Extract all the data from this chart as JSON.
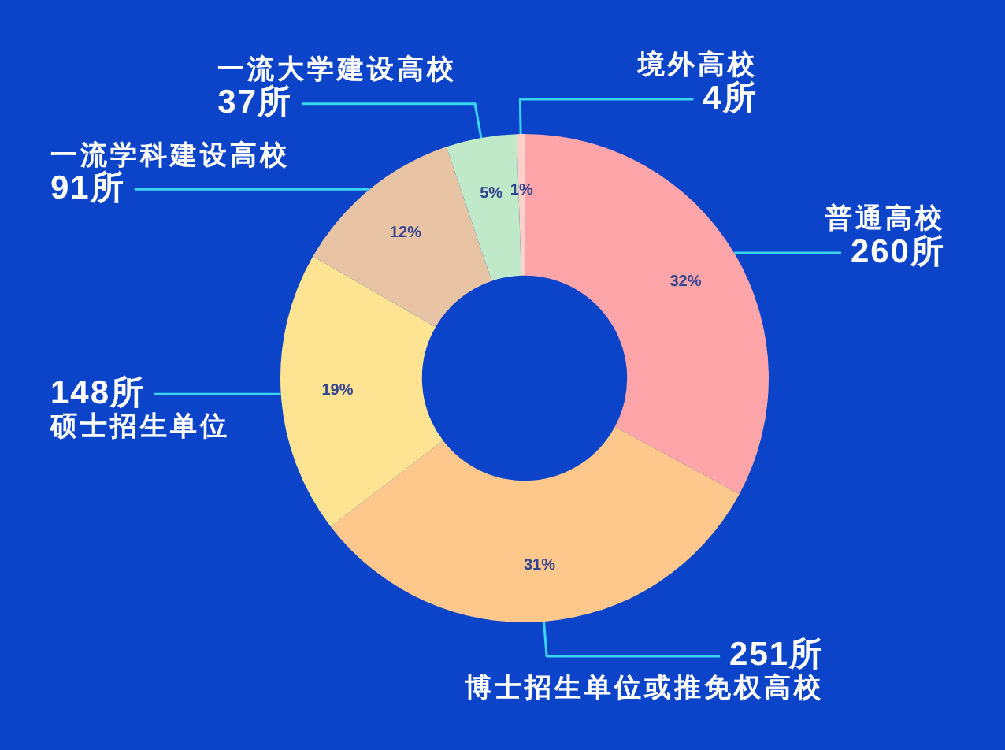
{
  "chart_data": {
    "type": "donut",
    "categories": [
      "普通高校",
      "博士招生单位或推免权高校",
      "硕士招生单位",
      "一流学科建设高校",
      "一流大学建设高校",
      "境外高校"
    ],
    "values": [
      260,
      251,
      148,
      91,
      37,
      4
    ],
    "colors": [
      "#fda5a8",
      "#fec88c",
      "#fee392",
      "#e9c4a4",
      "#bfe9c9",
      "#fdd1c9"
    ],
    "value_labels": [
      "260所",
      "251所",
      "148所",
      "91所",
      "37所",
      "4所"
    ],
    "annotations": [
      {
        "text": "32%",
        "x": "普通高校"
      },
      {
        "text": "31%",
        "x": "博士招生单位或推免权高校"
      },
      {
        "text": "19%",
        "x": "硕士招生单位"
      },
      {
        "text": "12%",
        "x": "一流学科建设高校"
      },
      {
        "text": "5%",
        "x": "一流大学建设高校"
      },
      {
        "text": "1%",
        "x": "境外高校"
      }
    ]
  }
}
